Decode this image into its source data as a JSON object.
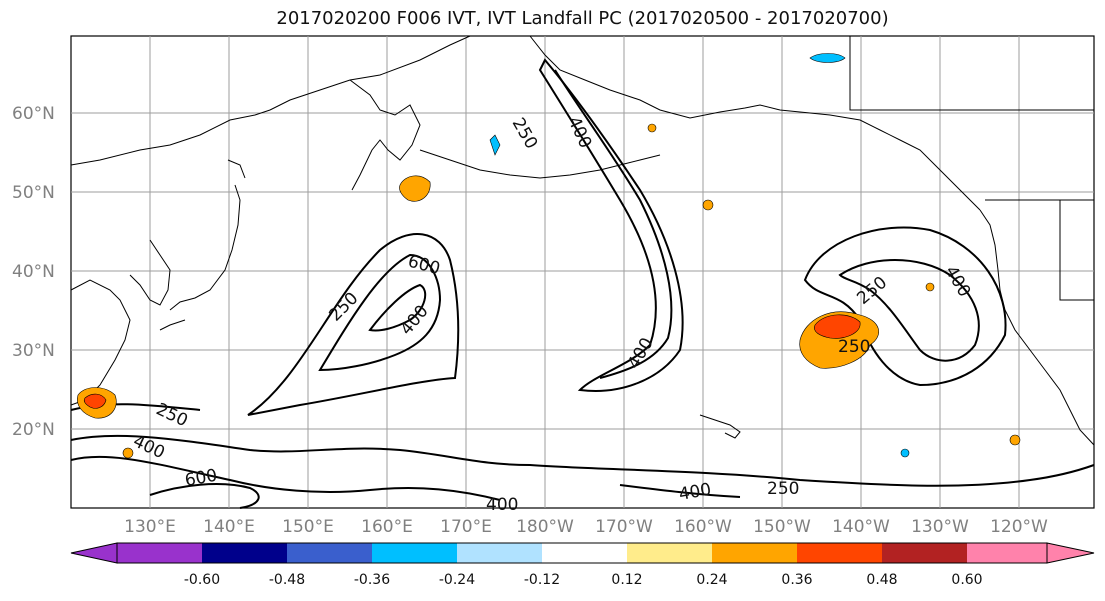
{
  "title": "2017020200 F006 IVT, IVT Landfall PC (2017020500 - 2017020700)",
  "lat_labels": [
    "60°N",
    "50°N",
    "40°N",
    "30°N",
    "20°N"
  ],
  "lon_labels": [
    "130°E",
    "140°E",
    "150°E",
    "160°E",
    "170°E",
    "180°W",
    "170°W",
    "160°W",
    "150°W",
    "140°W",
    "130°W",
    "120°W"
  ],
  "contour_labels": [
    "250",
    "400",
    "600",
    "250",
    "400",
    "250",
    "400",
    "400",
    "250",
    "400",
    "250",
    "400",
    "600",
    "250",
    "400",
    "400",
    "250"
  ],
  "colorbar": {
    "colors": [
      "#9932cc",
      "#00008b",
      "#3a5fcd",
      "#00bfff",
      "#b0e2ff",
      "#ffffff",
      "#ffec8b",
      "#ffa500",
      "#ff4500",
      "#b22222",
      "#ff82ab",
      "#ff69b4"
    ],
    "labels": [
      "-0.60",
      "-0.48",
      "-0.36",
      "-0.24",
      "-0.12",
      "0.12",
      "0.24",
      "0.36",
      "0.48",
      "0.60"
    ]
  },
  "style": {
    "land_line": "#000000",
    "grid": "#9e9e9e",
    "positive_fill": "#ffa500",
    "negative_fill": "#00bfff"
  }
}
